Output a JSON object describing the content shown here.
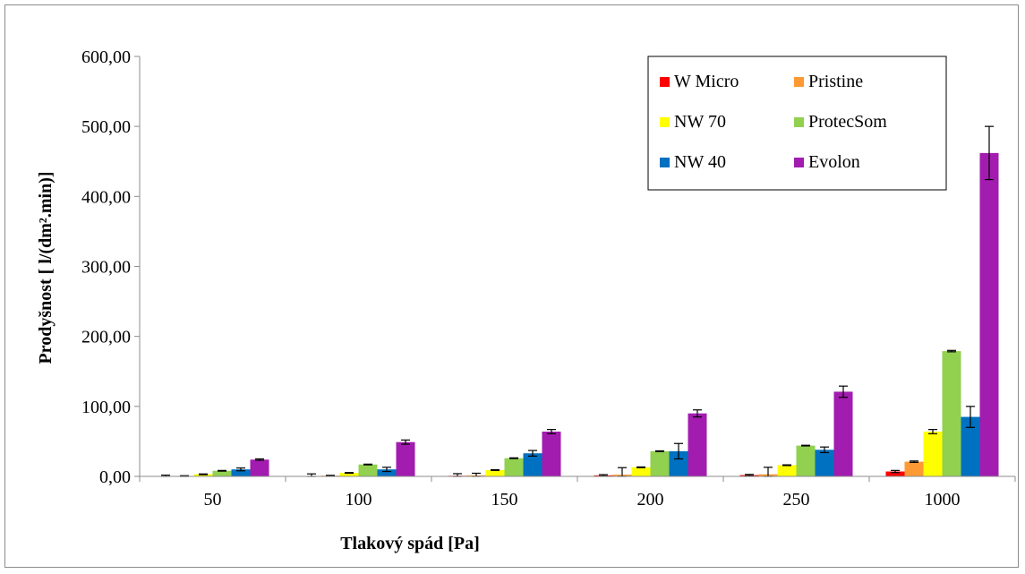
{
  "chart_data": {
    "type": "bar",
    "title": "",
    "xlabel": "Tlakový spád [Pa]",
    "ylabel": "Prodyšnost [ l/(dm².min)]",
    "ylim": [
      0,
      600
    ],
    "yticks": [
      "0,00",
      "100,00",
      "200,00",
      "300,00",
      "400,00",
      "500,00",
      "600,00"
    ],
    "categories": [
      "50",
      "100",
      "150",
      "200",
      "250",
      "1000"
    ],
    "grid": false,
    "legend_position": "top-right",
    "series": [
      {
        "name": "W Micro",
        "color": "#ff0000",
        "values": [
          0.3,
          0.6,
          0.9,
          1.5,
          1.8,
          7
        ],
        "errors": [
          1.5,
          3,
          3,
          1,
          1,
          1.5
        ]
      },
      {
        "name": "Pristine",
        "color": "#ff9933",
        "values": [
          0.5,
          1,
          1.5,
          2.5,
          3,
          21
        ],
        "errors": [
          0.5,
          0.5,
          3,
          10,
          10,
          1
        ]
      },
      {
        "name": "NW 70",
        "color": "#ffff00",
        "values": [
          3,
          5,
          9,
          13,
          16,
          64
        ],
        "errors": [
          0.5,
          0.5,
          0.5,
          0.5,
          0.5,
          3
        ]
      },
      {
        "name": "ProtecSom",
        "color": "#92d050",
        "values": [
          8,
          17,
          26,
          36,
          44,
          179
        ],
        "errors": [
          0.5,
          0.5,
          0.5,
          0.5,
          0.5,
          1
        ]
      },
      {
        "name": "NW 40",
        "color": "#0070c0",
        "values": [
          10,
          10,
          33,
          36,
          38,
          85
        ],
        "errors": [
          2,
          3,
          4,
          11,
          4,
          15
        ]
      },
      {
        "name": "Evolon",
        "color": "#a21caf",
        "values": [
          24,
          49,
          64,
          90,
          121,
          462
        ],
        "errors": [
          1,
          3,
          3,
          5,
          8,
          38
        ]
      }
    ]
  }
}
